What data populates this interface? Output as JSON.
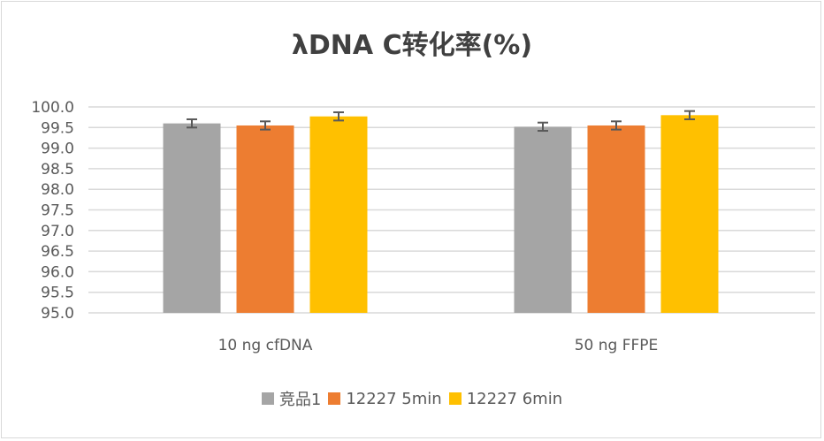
{
  "chart_data": {
    "type": "bar",
    "title": "λDNA C转化率(%)",
    "xlabel": "",
    "ylabel": "",
    "ylim": [
      95.0,
      100.0
    ],
    "yticks": [
      "95.0",
      "95.5",
      "96.0",
      "96.5",
      "97.0",
      "97.5",
      "98.0",
      "98.5",
      "99.0",
      "99.5",
      "100.0"
    ],
    "grid": true,
    "legend_position": "bottom",
    "categories": [
      "10 ng cfDNA",
      "50 ng FFPE"
    ],
    "series": [
      {
        "name": "竞品1",
        "color": "#a5a5a5",
        "values": [
          99.6,
          99.52
        ],
        "error": [
          0.1,
          0.1
        ]
      },
      {
        "name": "12227 5min",
        "color": "#ed7d31",
        "values": [
          99.55,
          99.55
        ],
        "error": [
          0.1,
          0.1
        ]
      },
      {
        "name": "12227 6min",
        "color": "#ffc000",
        "values": [
          99.77,
          99.8
        ],
        "error": [
          0.1,
          0.1
        ]
      }
    ]
  }
}
